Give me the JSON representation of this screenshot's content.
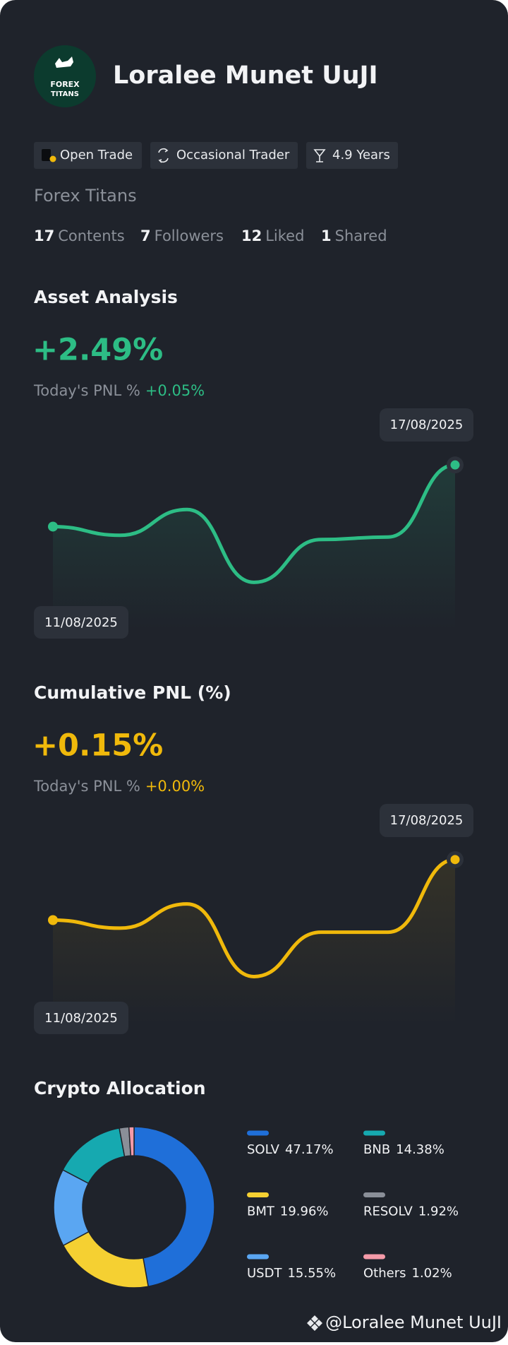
{
  "profile": {
    "name": "Loralee Munet UuJI",
    "logo_text": [
      "FOREX",
      "TITANS"
    ],
    "tags": [
      "Open Trade",
      "Occasional Trader",
      "4.9 Years"
    ],
    "company": "Forex Titans",
    "stats": [
      {
        "value": 17,
        "label": "Contents"
      },
      {
        "value": 7,
        "label": "Followers"
      },
      {
        "value": 12,
        "label": "Liked"
      },
      {
        "value": 1,
        "label": "Shared"
      }
    ]
  },
  "chart_data": [
    {
      "type": "line",
      "title": "Asset Analysis",
      "headline": "+2.49%",
      "pnl_label": "Today's PNL %",
      "pnl_value": "+0.05%",
      "x": [
        "11/08/2025",
        null,
        null,
        null,
        null,
        null,
        "17/08/2025"
      ],
      "series": [
        {
          "color": "#2dbd85",
          "values": [
            0,
            -0.35,
            0.69,
            -2.25,
            -0.52,
            -0.42,
            2.49
          ]
        }
      ],
      "ylim": [
        -4.15,
        4.32
      ]
    },
    {
      "type": "line",
      "title": "Cumulative PNL (%)",
      "headline": "+0.15%",
      "pnl_label": "Today's PNL %",
      "pnl_value": "+0.00%",
      "x": [
        "11/08/2025",
        null,
        null,
        null,
        null,
        null,
        "17/08/2025"
      ],
      "series": [
        {
          "color": "#f0b90b",
          "values": [
            0,
            -0.02,
            0.04,
            -0.14,
            -0.03,
            -0.03,
            0.15
          ]
        }
      ],
      "ylim": [
        -0.26,
        0.26
      ]
    },
    {
      "type": "pie",
      "title": "Crypto Allocation",
      "categories": [
        "SOLV",
        "BMT",
        "USDT",
        "BNB",
        "RESOLV",
        "Others"
      ],
      "values": [
        47.17,
        19.96,
        15.55,
        14.38,
        1.92,
        1.02
      ],
      "value_labels": [
        "47.17%",
        "19.96%",
        "15.55%",
        "14.38%",
        "1.92%",
        "1.02%"
      ],
      "colors": [
        "#1f6fd9",
        "#f5d032",
        "#5aa6f2",
        "#16a9b0",
        "#8a8f98",
        "#f49aa8"
      ]
    }
  ],
  "footer": "@Loralee Munet UuJI"
}
